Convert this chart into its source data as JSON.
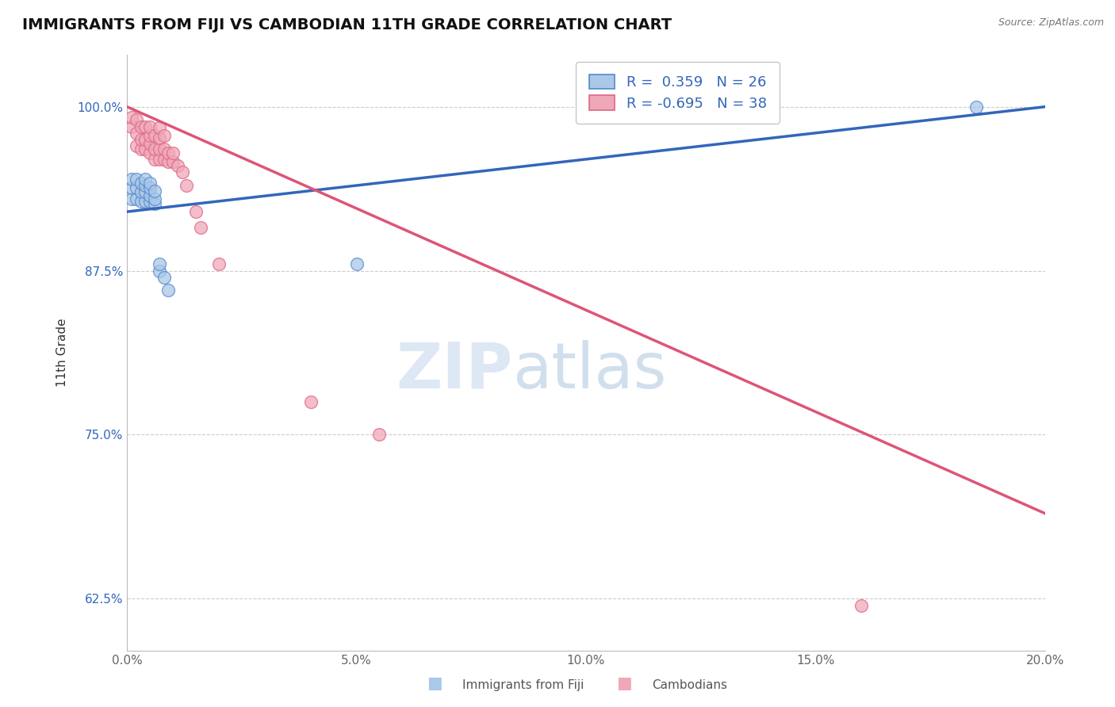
{
  "title": "IMMIGRANTS FROM FIJI VS CAMBODIAN 11TH GRADE CORRELATION CHART",
  "source_text": "Source: ZipAtlas.com",
  "ylabel": "11th Grade",
  "xlim": [
    0.0,
    0.2
  ],
  "ylim": [
    0.585,
    1.04
  ],
  "xtick_labels": [
    "0.0%",
    "5.0%",
    "10.0%",
    "15.0%",
    "20.0%"
  ],
  "xtick_values": [
    0.0,
    0.05,
    0.1,
    0.15,
    0.2
  ],
  "ytick_labels": [
    "62.5%",
    "75.0%",
    "87.5%",
    "100.0%"
  ],
  "ytick_values": [
    0.625,
    0.75,
    0.875,
    1.0
  ],
  "grid_color": "#cccccc",
  "background_color": "#ffffff",
  "series1_color": "#aac8e8",
  "series2_color": "#f0a8b8",
  "series1_edge_color": "#5588cc",
  "series2_edge_color": "#dd6688",
  "series1_line_color": "#3366bb",
  "series2_line_color": "#dd5577",
  "series1_label": "Immigrants from Fiji",
  "series2_label": "Cambodians",
  "series1_R": "0.359",
  "series1_N": 26,
  "series2_R": "-0.695",
  "series2_N": 38,
  "watermark_zip": "ZIP",
  "watermark_atlas": "atlas",
  "series1_x": [
    0.001,
    0.001,
    0.001,
    0.002,
    0.002,
    0.002,
    0.003,
    0.003,
    0.003,
    0.004,
    0.004,
    0.004,
    0.004,
    0.005,
    0.005,
    0.005,
    0.005,
    0.006,
    0.006,
    0.006,
    0.007,
    0.007,
    0.008,
    0.009,
    0.05,
    0.185
  ],
  "series1_y": [
    0.93,
    0.938,
    0.945,
    0.93,
    0.938,
    0.945,
    0.928,
    0.935,
    0.942,
    0.928,
    0.935,
    0.94,
    0.945,
    0.928,
    0.932,
    0.938,
    0.942,
    0.926,
    0.93,
    0.936,
    0.875,
    0.88,
    0.87,
    0.86,
    0.88,
    1.0
  ],
  "series2_x": [
    0.001,
    0.001,
    0.002,
    0.002,
    0.002,
    0.003,
    0.003,
    0.003,
    0.004,
    0.004,
    0.004,
    0.005,
    0.005,
    0.005,
    0.005,
    0.006,
    0.006,
    0.006,
    0.007,
    0.007,
    0.007,
    0.007,
    0.008,
    0.008,
    0.008,
    0.009,
    0.009,
    0.01,
    0.01,
    0.011,
    0.012,
    0.013,
    0.015,
    0.016,
    0.02,
    0.04,
    0.055,
    0.16
  ],
  "series2_y": [
    0.985,
    0.992,
    0.97,
    0.98,
    0.99,
    0.968,
    0.975,
    0.985,
    0.968,
    0.975,
    0.985,
    0.965,
    0.972,
    0.978,
    0.985,
    0.96,
    0.968,
    0.978,
    0.96,
    0.968,
    0.976,
    0.984,
    0.96,
    0.968,
    0.978,
    0.958,
    0.965,
    0.958,
    0.965,
    0.955,
    0.95,
    0.94,
    0.92,
    0.908,
    0.88,
    0.775,
    0.75,
    0.62
  ],
  "blue_line_x0": 0.0,
  "blue_line_y0": 0.92,
  "blue_line_x1": 0.2,
  "blue_line_y1": 1.0,
  "pink_line_x0": 0.0,
  "pink_line_y0": 1.0,
  "pink_line_x1": 0.2,
  "pink_line_y1": 0.69
}
